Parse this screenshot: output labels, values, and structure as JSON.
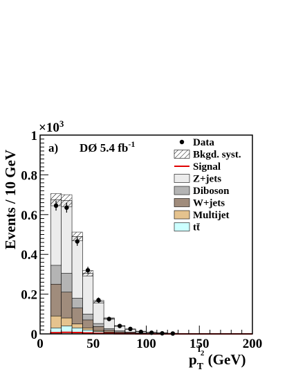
{
  "chart_data": {
    "type": "stacked-histogram",
    "panel_label": "a)",
    "experiment": "DØ 5.4 fb",
    "experiment_sup": "-1",
    "multiplier": "×10",
    "multiplier_sup": "3",
    "ylabel": "Events / 10 GeV",
    "xlabel_main": "p",
    "xlabel_sub": "T",
    "xlabel_sup": "l",
    "xlabel_supsub": "2",
    "xlabel_unit": " (GeV)",
    "xlim": [
      0,
      200
    ],
    "ylim": [
      0,
      1.0
    ],
    "xticks": [
      "0",
      "50",
      "100",
      "150",
      "200"
    ],
    "yticks": [
      "0",
      "0.2",
      "0.4",
      "0.6",
      "0.8",
      "1"
    ],
    "bin_edges": [
      10,
      20,
      30,
      40,
      50,
      60,
      70,
      80,
      90,
      100,
      110,
      120,
      130,
      140,
      150,
      160,
      170,
      180,
      190,
      200
    ],
    "stack": [
      {
        "name": "tt̄",
        "color": "#ccffff",
        "values": [
          0.03,
          0.04,
          0.03,
          0.02,
          0.012,
          0.006,
          0.004,
          0.002,
          0.001,
          0.001,
          0,
          0,
          0,
          0,
          0,
          0,
          0,
          0,
          0
        ]
      },
      {
        "name": "Multijet",
        "color": "#e5c38e",
        "values": [
          0.06,
          0.04,
          0.02,
          0.01,
          0.005,
          0.003,
          0.001,
          0.001,
          0,
          0,
          0,
          0,
          0,
          0,
          0,
          0,
          0,
          0,
          0
        ]
      },
      {
        "name": "W+jets",
        "color": "#a08c7c",
        "values": [
          0.16,
          0.13,
          0.08,
          0.04,
          0.02,
          0.01,
          0.005,
          0.003,
          0.002,
          0.001,
          0,
          0,
          0,
          0,
          0,
          0,
          0,
          0,
          0
        ]
      },
      {
        "name": "Diboson",
        "color": "#b4b4b4",
        "values": [
          0.095,
          0.095,
          0.05,
          0.03,
          0.015,
          0.008,
          0.005,
          0.003,
          0.002,
          0.001,
          0.001,
          0,
          0,
          0,
          0,
          0,
          0,
          0,
          0
        ]
      },
      {
        "name": "Z+jets",
        "color": "#ececec",
        "values": [
          0.33,
          0.365,
          0.31,
          0.205,
          0.11,
          0.05,
          0.025,
          0.015,
          0.008,
          0.005,
          0.004,
          0.003,
          0.002,
          0.001,
          0.001,
          0,
          0,
          0,
          0
        ]
      }
    ],
    "signal": {
      "name": "Signal",
      "color": "#e00000",
      "values": [
        0.006,
        0.008,
        0.007,
        0.005,
        0.003,
        0.002,
        0.001,
        0.001,
        0,
        0,
        0,
        0,
        0,
        0,
        0,
        0,
        0,
        0,
        0
      ]
    },
    "syst": {
      "name": "Bkgd. syst.",
      "frac": 0.045
    },
    "data": {
      "name": "Data",
      "x": [
        15,
        25,
        35,
        45,
        55,
        65,
        75,
        85,
        95,
        105,
        115,
        125
      ],
      "y": [
        0.645,
        0.635,
        0.465,
        0.32,
        0.17,
        0.075,
        0.04,
        0.025,
        0.01,
        0.006,
        0.003,
        0.002
      ],
      "err": [
        0.025,
        0.025,
        0.022,
        0.018,
        0.013,
        0.009,
        0.006,
        0.005,
        0.003,
        0.002,
        0.002,
        0.0015
      ]
    },
    "legend": [
      {
        "label": "Data",
        "kind": "marker",
        "color": "#000000"
      },
      {
        "label": "Bkgd. syst.",
        "kind": "hatch",
        "color": "#000000"
      },
      {
        "label": "Signal",
        "kind": "line",
        "color": "#e00000"
      },
      {
        "label": "Z+jets",
        "kind": "box",
        "color": "#ececec"
      },
      {
        "label": "Diboson",
        "kind": "box",
        "color": "#b4b4b4"
      },
      {
        "label": "W+jets",
        "kind": "box",
        "color": "#a08c7c"
      },
      {
        "label": "Multijet",
        "kind": "box",
        "color": "#e5c38e"
      },
      {
        "label": "tt̄",
        "kind": "box",
        "color": "#ccffff"
      }
    ]
  }
}
